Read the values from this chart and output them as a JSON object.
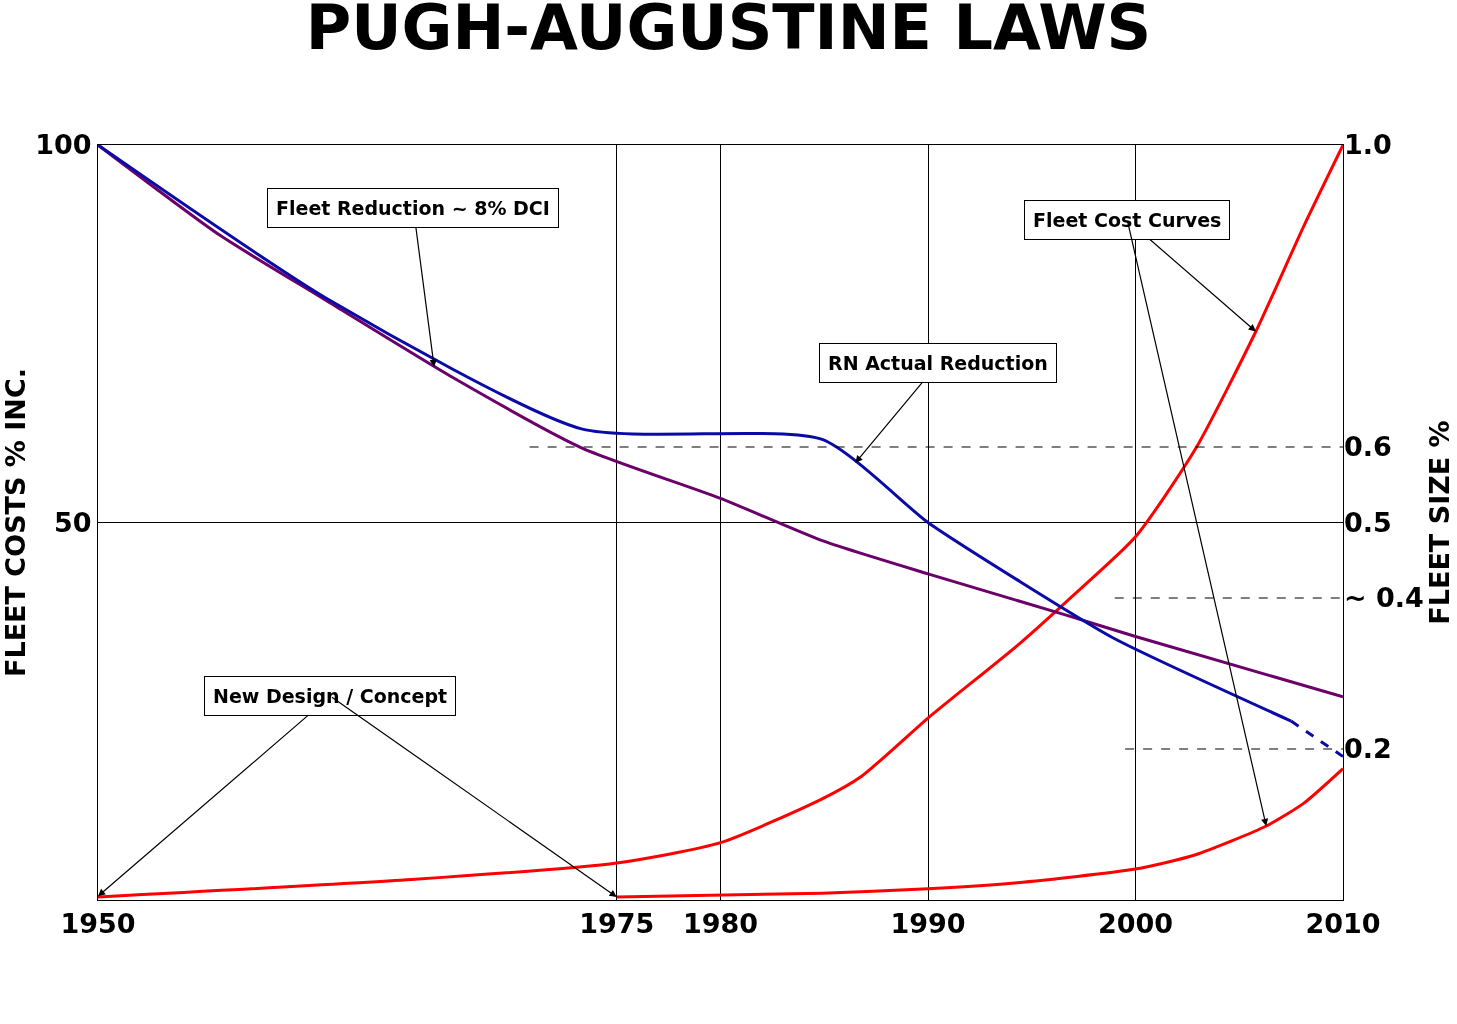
{
  "chart_data": {
    "type": "line",
    "title": "PUGH-AUGUSTINE LAWS",
    "ylabel": "FLEET COSTS % INC.",
    "y2label": "FLEET SIZE %",
    "xlim": [
      1950,
      2010
    ],
    "xticks": [
      1950,
      1975,
      1980,
      1990,
      2000,
      2010
    ],
    "ylim": [
      0,
      100
    ],
    "yticks": [
      50,
      100
    ],
    "y2lim": [
      0,
      1
    ],
    "y2ticks": [
      0.2,
      {
        "value": 0.4,
        "label": "~ 0.4"
      },
      0.5,
      0.6,
      {
        "value": 1,
        "label": "1.0"
      }
    ],
    "grid": true,
    "marker": "none",
    "series": [
      {
        "color": "#6b006b",
        "axis": "y2",
        "line_style": "solid",
        "x": [
          1950,
          1955.9,
          1961,
          1967.1,
          1973.3,
          1980,
          1984.9,
          1990,
          1996.7,
          2000,
          2010
        ],
        "values": [
          1.0,
          0.88,
          0.794,
          0.692,
          0.599,
          0.532,
          0.476,
          0.432,
          0.377,
          0.349,
          0.269
        ]
      },
      {
        "color": "#0a0aa8",
        "axis": "y2",
        "line_style": "solid",
        "x": [
          1950,
          1961,
          1973.3,
          1984.9,
          1990,
          1994.3,
          1999,
          2007.5
        ],
        "values": [
          1.0,
          0.797,
          0.624,
          0.61,
          0.5,
          0.424,
          0.346,
          0.237
        ]
      },
      {
        "color": "#0a0aa8",
        "axis": "y2",
        "line_style": "dashed",
        "x": [
          2007.5,
          2010
        ],
        "values": [
          0.237,
          0.19
        ]
      },
      {
        "color": "#ff0000",
        "line_style": "solid",
        "x": [
          1950,
          1965.1,
          1975,
          1980,
          1984.9,
          1986.8,
          1990,
          1994.3,
          1996.7,
          2000,
          2002.9,
          2005.8,
          2008.1,
          2010
        ],
        "values": [
          0.4,
          2.7,
          4.9,
          7.6,
          13.4,
          16.4,
          24.1,
          33.7,
          39.6,
          48.1,
          59.8,
          75.3,
          89.2,
          100
        ]
      },
      {
        "color": "#ff0000",
        "line_style": "solid",
        "x": [
          1975,
          1984.9,
          1990,
          1994.3,
          2000,
          2002.9,
          2006.3,
          2008.1,
          2010
        ],
        "values": [
          0.4,
          0.9,
          1.5,
          2.3,
          4.1,
          6.0,
          9.8,
          12.8,
          17.4
        ]
      },
      {
        "color": "#000000",
        "axis": "y2",
        "line_style": "dashed",
        "x": [
          1970.8,
          2010
        ],
        "values": [
          0.6,
          0.6
        ]
      },
      {
        "color": "#000000",
        "axis": "y2",
        "line_style": "dashed",
        "x": [
          1999,
          2010
        ],
        "values": [
          0.4,
          0.4
        ]
      },
      {
        "color": "#000000",
        "axis": "y2",
        "line_style": "dashed",
        "x": [
          1999.5,
          2010
        ],
        "values": [
          0.2,
          0.2
        ]
      }
    ],
    "annotations": [
      {
        "text": "Fleet Reduction ~ 8% DCI",
        "x": 1966.2,
        "y": 70.6
      },
      {
        "text": "RN Actual Reduction",
        "x": 1986.5,
        "y": 57.9
      },
      {
        "text": "Fleet Cost Curves",
        "x": 2005.8,
        "y": 75.3
      },
      {
        "text": "New Design / Concept",
        "x": 1950,
        "y": 0.5
      }
    ]
  }
}
